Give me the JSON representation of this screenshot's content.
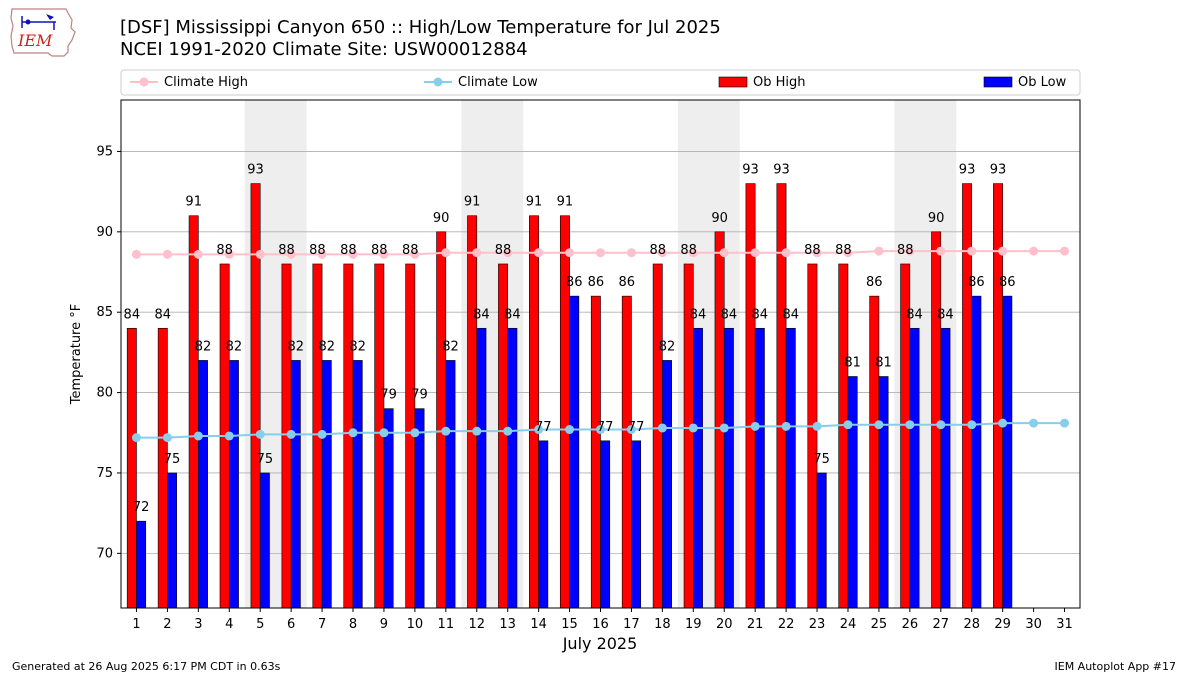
{
  "header": {
    "title_line1": "[DSF] Mississippi Canyon 650 :: High/Low Temperature for Jul 2025",
    "title_line2": "NCEI 1991-2020 Climate Site: USW00012884",
    "logo_text": "IEM"
  },
  "footer": {
    "generated": "Generated at 26 Aug 2025 6:17 PM CDT in 0.63s",
    "app": "IEM Autoplot App #17"
  },
  "colors": {
    "ob_high": "#ff0000",
    "ob_low": "#0000ff",
    "climate_high": "#ffc0cb",
    "climate_low": "#87ceeb",
    "weekend_shade": "#eeeeee",
    "grid": "#b0b0b0"
  },
  "chart_data": {
    "type": "bar",
    "xlabel": "July 2025",
    "ylabel": "Temperature °F",
    "ylim": [
      66.6,
      98.2
    ],
    "yticks": [
      70,
      75,
      80,
      85,
      90,
      95
    ],
    "grid": "horizontal",
    "legend_position": "top",
    "categories": [
      "1",
      "2",
      "3",
      "4",
      "5",
      "6",
      "7",
      "8",
      "9",
      "10",
      "11",
      "12",
      "13",
      "14",
      "15",
      "16",
      "17",
      "18",
      "19",
      "20",
      "21",
      "22",
      "23",
      "24",
      "25",
      "26",
      "27",
      "28",
      "29",
      "30",
      "31"
    ],
    "shaded_days": [
      [
        5,
        6
      ],
      [
        12,
        13
      ],
      [
        19,
        20
      ],
      [
        26,
        27
      ]
    ],
    "series": [
      {
        "name": "Climate High",
        "kind": "line",
        "values": [
          88.6,
          88.6,
          88.6,
          88.6,
          88.6,
          88.6,
          88.6,
          88.6,
          88.6,
          88.6,
          88.7,
          88.7,
          88.7,
          88.7,
          88.7,
          88.7,
          88.7,
          88.7,
          88.7,
          88.7,
          88.7,
          88.7,
          88.7,
          88.7,
          88.8,
          88.8,
          88.8,
          88.8,
          88.8,
          88.8,
          88.8
        ]
      },
      {
        "name": "Climate Low",
        "kind": "line",
        "values": [
          77.2,
          77.2,
          77.3,
          77.3,
          77.4,
          77.4,
          77.4,
          77.5,
          77.5,
          77.5,
          77.6,
          77.6,
          77.6,
          77.7,
          77.7,
          77.7,
          77.7,
          77.8,
          77.8,
          77.8,
          77.9,
          77.9,
          77.9,
          78.0,
          78.0,
          78.0,
          78.0,
          78.0,
          78.1,
          78.1,
          78.1
        ]
      },
      {
        "name": "Ob High",
        "kind": "bar",
        "values": [
          84,
          84,
          91,
          88,
          93,
          88,
          88,
          88,
          88,
          88,
          90,
          91,
          88,
          91,
          91,
          86,
          86,
          88,
          88,
          90,
          93,
          93,
          88,
          88,
          86,
          88,
          90,
          93,
          93,
          null,
          null
        ]
      },
      {
        "name": "Ob Low",
        "kind": "bar",
        "values": [
          72,
          75,
          82,
          82,
          75,
          82,
          82,
          82,
          79,
          79,
          82,
          84,
          84,
          77,
          86,
          77,
          77,
          82,
          84,
          84,
          84,
          84,
          75,
          81,
          81,
          84,
          84,
          86,
          86,
          null,
          null
        ]
      }
    ]
  }
}
